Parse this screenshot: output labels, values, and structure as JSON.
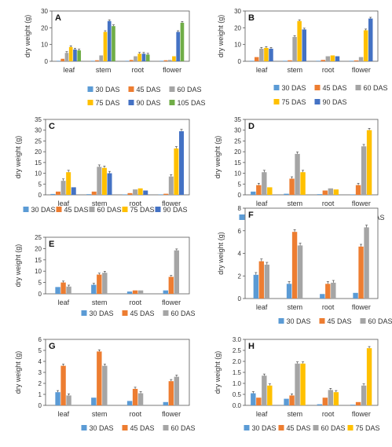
{
  "colors": {
    "30 DAS": "#5b9bd5",
    "45 DAS": "#ed7d31",
    "60 DAS": "#a5a5a5",
    "75 DAS": "#ffc000",
    "90 DAS": "#4472c4",
    "105 DAS": "#70ad47"
  },
  "chart_data": [
    {
      "label": "A",
      "type": "bar",
      "ylabel": "dry weight (g)",
      "categories": [
        "leaf",
        "stem",
        "root",
        "flower"
      ],
      "ylim": [
        0,
        30
      ],
      "yticks": [
        0,
        10,
        20,
        30
      ],
      "series": [
        {
          "name": "30 DAS",
          "values": [
            0.3,
            0.3,
            0.3,
            0.3
          ]
        },
        {
          "name": "45 DAS",
          "values": [
            1.5,
            0.6,
            0.8,
            0.6
          ]
        },
        {
          "name": "60 DAS",
          "values": [
            5,
            3.5,
            3,
            0.8
          ]
        },
        {
          "name": "75 DAS",
          "values": [
            8.5,
            17.5,
            4.5,
            3
          ]
        },
        {
          "name": "90 DAS",
          "values": [
            7,
            24,
            4.5,
            17.5
          ]
        },
        {
          "name": "105 DAS",
          "values": [
            6.5,
            21,
            4,
            23
          ]
        }
      ],
      "legend_rows": [
        [
          "30 DAS",
          "45 DAS",
          "60 DAS"
        ],
        [
          "75 DAS",
          "90 DAS",
          "105 DAS"
        ]
      ]
    },
    {
      "label": "B",
      "type": "bar",
      "ylabel": "dry weight (g)",
      "categories": [
        "leaf",
        "stem",
        "root",
        "flower"
      ],
      "ylim": [
        0,
        30
      ],
      "yticks": [
        0,
        10,
        20,
        30
      ],
      "series": [
        {
          "name": "30 DAS",
          "values": [
            0.3,
            0.3,
            0.3,
            0.3
          ]
        },
        {
          "name": "45 DAS",
          "values": [
            2.5,
            0.6,
            0.8,
            0.5
          ]
        },
        {
          "name": "60 DAS",
          "values": [
            7.5,
            14.5,
            3,
            2.5
          ]
        },
        {
          "name": "75 DAS",
          "values": [
            8,
            24,
            3.5,
            18.5
          ]
        },
        {
          "name": "90 DAS",
          "values": [
            7.5,
            19,
            3,
            25.5
          ]
        }
      ],
      "legend_rows": [
        [
          "30 DAS",
          "45 DAS",
          "60 DAS"
        ],
        [
          "75 DAS",
          "90 DAS"
        ]
      ]
    },
    {
      "label": "C",
      "type": "bar",
      "ylabel": "dry weight (g)",
      "categories": [
        "leaf",
        "stem",
        "root",
        "flower"
      ],
      "ylim": [
        0,
        35
      ],
      "yticks": [
        0,
        5,
        10,
        15,
        20,
        25,
        30,
        35
      ],
      "series": [
        {
          "name": "30 DAS",
          "values": [
            0.4,
            0.3,
            0.2,
            0.2
          ]
        },
        {
          "name": "45 DAS",
          "values": [
            1.5,
            1.5,
            0.8,
            0.5
          ]
        },
        {
          "name": "60 DAS",
          "values": [
            6.5,
            13,
            2.5,
            8.5
          ]
        },
        {
          "name": "75 DAS",
          "values": [
            10.5,
            12.5,
            3,
            21.5
          ]
        },
        {
          "name": "90 DAS",
          "values": [
            3.5,
            10,
            2,
            29.5
          ]
        }
      ],
      "legend_rows": [
        [
          "30 DAS",
          "45 DAS",
          "60 DAS",
          "75 DAS",
          "90 DAS"
        ]
      ]
    },
    {
      "label": "D",
      "type": "bar",
      "ylabel": "dry weight (g)",
      "categories": [
        "leaf",
        "stem",
        "root",
        "flower"
      ],
      "ylim": [
        0,
        35
      ],
      "yticks": [
        0,
        5,
        10,
        15,
        20,
        25,
        30,
        35
      ],
      "series": [
        {
          "name": "30 DAS",
          "values": [
            1.5,
            0.5,
            0.3,
            0.2
          ]
        },
        {
          "name": "45 DAS",
          "values": [
            4.5,
            7.5,
            2,
            4.5
          ]
        },
        {
          "name": "60 DAS",
          "values": [
            10.5,
            19,
            3,
            22.5
          ]
        },
        {
          "name": "75 DAS",
          "values": [
            3.5,
            10.5,
            2.5,
            30
          ]
        }
      ],
      "legend_rows": [
        [
          "30 DAS",
          "45 DAS",
          "60 DAS",
          "75 DAS"
        ]
      ]
    },
    {
      "label": "E",
      "type": "bar",
      "ylabel": "dry weight (g)",
      "categories": [
        "leaf",
        "stem",
        "root",
        "flower"
      ],
      "ylim": [
        0,
        25
      ],
      "yticks": [
        0,
        5,
        10,
        15,
        20,
        25
      ],
      "series": [
        {
          "name": "30 DAS",
          "values": [
            3,
            4,
            1,
            1.5
          ]
        },
        {
          "name": "45 DAS",
          "values": [
            5,
            8.5,
            1.5,
            7.5
          ]
        },
        {
          "name": "60 DAS",
          "values": [
            3.2,
            9.3,
            1.5,
            19.2
          ]
        }
      ],
      "legend_rows": [
        [
          "30 DAS",
          "45 DAS",
          "60 DAS"
        ]
      ]
    },
    {
      "label": "F",
      "type": "bar",
      "ylabel": "dry weight (g)",
      "categories": [
        "leaf",
        "stem",
        "root",
        "flower"
      ],
      "ylim": [
        0,
        8
      ],
      "yticks": [
        0,
        2,
        4,
        6,
        8
      ],
      "series": [
        {
          "name": "30 DAS",
          "values": [
            2.1,
            1.3,
            0.4,
            0.5
          ]
        },
        {
          "name": "45 DAS",
          "values": [
            3.3,
            5.9,
            1.3,
            4.6
          ]
        },
        {
          "name": "60 DAS",
          "values": [
            3,
            4.7,
            1.4,
            6.3
          ]
        }
      ],
      "legend_rows": [
        [
          "30 DAS",
          "45 DAS",
          "60 DAS"
        ]
      ]
    },
    {
      "label": "G",
      "type": "bar",
      "ylabel": "dry weight (g)",
      "categories": [
        "leaf",
        "stem",
        "root",
        "flower"
      ],
      "ylim": [
        0,
        6
      ],
      "yticks": [
        0,
        1,
        2,
        3,
        4,
        5,
        6
      ],
      "series": [
        {
          "name": "30 DAS",
          "values": [
            1.2,
            0.7,
            0.4,
            0.3
          ]
        },
        {
          "name": "45 DAS",
          "values": [
            3.6,
            4.9,
            1.5,
            2.2
          ]
        },
        {
          "name": "60 DAS",
          "values": [
            0.9,
            3.6,
            1.1,
            2.6
          ]
        }
      ],
      "legend_rows": [
        [
          "30 DAS",
          "45 DAS",
          "60 DAS"
        ]
      ]
    },
    {
      "label": "H",
      "type": "bar",
      "ylabel": "dry weight (g)",
      "categories": [
        "leaf",
        "stem",
        "root",
        "flower"
      ],
      "ylim": [
        0,
        3.0
      ],
      "yticks": [
        "0.0",
        "0.5",
        "1.0",
        "1.5",
        "2.0",
        "2.5",
        "3.0"
      ],
      "series": [
        {
          "name": "30 DAS",
          "values": [
            0.55,
            0.3,
            0.05,
            0.03
          ]
        },
        {
          "name": "45 DAS",
          "values": [
            0.35,
            0.45,
            0.35,
            0.15
          ]
        },
        {
          "name": "60 DAS",
          "values": [
            1.35,
            1.9,
            0.7,
            0.9
          ]
        },
        {
          "name": "75 DAS",
          "values": [
            0.9,
            1.9,
            0.6,
            2.6
          ]
        }
      ],
      "legend_rows": [
        [
          "30 DAS",
          "45 DAS",
          "60 DAS",
          "75 DAS"
        ]
      ]
    }
  ]
}
